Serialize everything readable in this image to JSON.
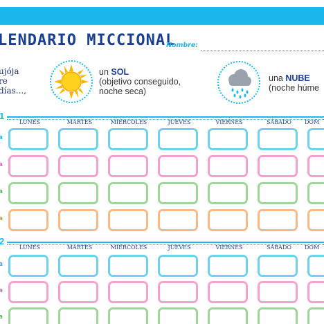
{
  "header": {
    "title": "LENDARIO MICCIONAL",
    "name_label": "Nombre:"
  },
  "intro": {
    "text": "ujója\nre\ndías...,"
  },
  "legend": {
    "sun": {
      "prefix": "un",
      "keyword": "SOL",
      "note": "(objetivo conseguido,\nnoche seca)",
      "icon": "sun-icon"
    },
    "cloud": {
      "prefix": "una",
      "keyword": "NUBE",
      "note": "(noche húme",
      "icon": "rain-cloud-icon"
    }
  },
  "weeks": [
    {
      "number": "1",
      "days": [
        "LUNES",
        "MARTES",
        "MIÉRCOLES",
        "JUEVES",
        "VIERNES",
        "SÁBADO",
        "DOM"
      ]
    },
    {
      "number": "2",
      "days": [
        "LUNES",
        "MARTES",
        "MIÉRCOLES",
        "JUEVES",
        "VIERNES",
        "SÁBADO",
        "DOM"
      ]
    }
  ],
  "row_marker": "a",
  "colors": {
    "accent_blue": "#1ab7ea",
    "title_navy": "#1b3f8f",
    "row_blue": "#6fd0f0",
    "row_pink": "#f5a1cf",
    "row_green": "#9ed598",
    "row_orange": "#f9b987"
  }
}
